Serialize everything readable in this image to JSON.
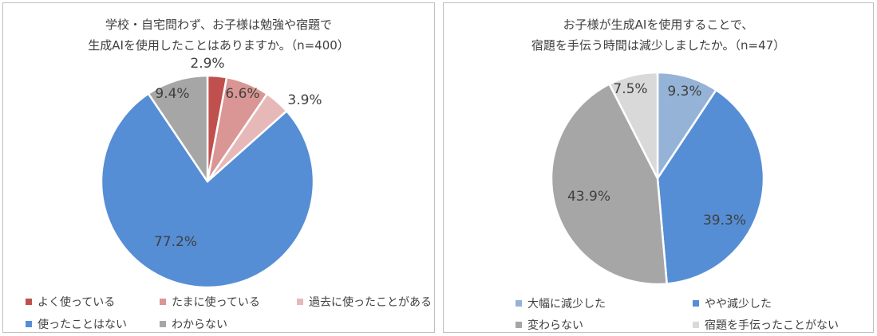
{
  "chart_data": [
    {
      "type": "pie",
      "title": [
        "学校・自宅問わず、お子様は勉強や宿題で",
        "生成AIを使用したことはありますか。（n=400）"
      ],
      "slices": [
        {
          "label": "よく使っている",
          "value": 2.9,
          "display": "2.9%",
          "color": "#c0504d"
        },
        {
          "label": "たまに使っている",
          "value": 6.6,
          "display": "6.6%",
          "color": "#d99694"
        },
        {
          "label": "過去に使ったことがある",
          "value": 3.9,
          "display": "3.9%",
          "color": "#e6b9b8"
        },
        {
          "label": "使ったことはない",
          "value": 77.2,
          "display": "77.2%",
          "color": "#558ed5"
        },
        {
          "label": "わからない",
          "value": 9.4,
          "display": "9.4%",
          "color": "#a6a6a6"
        }
      ],
      "legend_position": "bottom"
    },
    {
      "type": "pie",
      "title": [
        "お子様が生成AIを使用することで、",
        "宿題を手伝う時間は減少しましたか。（n=47）"
      ],
      "slices": [
        {
          "label": "大幅に減少した",
          "value": 9.3,
          "display": "9.3%",
          "color": "#95b3d7"
        },
        {
          "label": "やや減少した",
          "value": 39.3,
          "display": "39.3%",
          "color": "#558ed5"
        },
        {
          "label": "変わらない",
          "value": 43.9,
          "display": "43.9%",
          "color": "#a6a6a6"
        },
        {
          "label": "宿題を手伝ったことがない",
          "value": 7.5,
          "display": "7.5%",
          "color": "#d9d9d9"
        }
      ],
      "legend_position": "bottom"
    }
  ]
}
